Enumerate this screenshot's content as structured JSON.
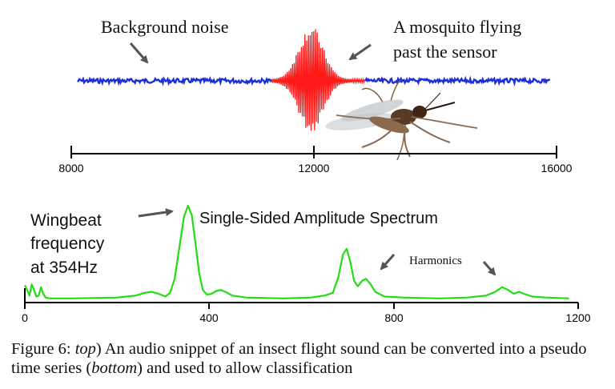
{
  "chart_data": [
    {
      "type": "line",
      "subtitle": "",
      "annotations": {
        "background_noise": "Background noise",
        "mosquito_line1": "A mosquito flying",
        "mosquito_line2": "past the sensor"
      },
      "xlim": [
        8000,
        16000
      ],
      "x_ticks": [
        "8000",
        "12000",
        "16000"
      ],
      "series": [
        {
          "segment": "background-left",
          "color": "#1f2fd6",
          "x_range": [
            8100,
            11300
          ],
          "amplitude": 0.04
        },
        {
          "segment": "mosquito",
          "color": "#ff1a1a",
          "x_range": [
            11300,
            12850
          ],
          "peak_x": 11950,
          "amplitude": 1.0
        },
        {
          "segment": "background-right",
          "color": "#1f2fd6",
          "x_range": [
            12850,
            15900
          ],
          "amplitude": 0.04
        }
      ]
    },
    {
      "type": "line",
      "title": "Single-Sided Amplitude Spectrum",
      "annotations": {
        "wingbeat_line1": "Wingbeat",
        "wingbeat_line2": "frequency",
        "wingbeat_line3": "at 354Hz",
        "harmonics": "Harmonics"
      },
      "xlim": [
        0,
        1200
      ],
      "x_ticks": [
        "0",
        "400",
        "800",
        "1200"
      ],
      "series": [
        {
          "color": "#22dd11",
          "points": [
            [
              0,
              0.15
            ],
            [
              5,
              0.1
            ],
            [
              10,
              0.04
            ],
            [
              15,
              0.16
            ],
            [
              20,
              0.1
            ],
            [
              25,
              0.03
            ],
            [
              30,
              0.04
            ],
            [
              35,
              0.13
            ],
            [
              40,
              0.06
            ],
            [
              45,
              0.02
            ],
            [
              55,
              0.01
            ],
            [
              100,
              0.01
            ],
            [
              200,
              0.02
            ],
            [
              240,
              0.04
            ],
            [
              260,
              0.07
            ],
            [
              275,
              0.08
            ],
            [
              290,
              0.06
            ],
            [
              305,
              0.03
            ],
            [
              315,
              0.07
            ],
            [
              325,
              0.22
            ],
            [
              335,
              0.55
            ],
            [
              345,
              0.88
            ],
            [
              354,
              1.0
            ],
            [
              362,
              0.9
            ],
            [
              370,
              0.6
            ],
            [
              378,
              0.28
            ],
            [
              386,
              0.1
            ],
            [
              395,
              0.05
            ],
            [
              405,
              0.06
            ],
            [
              415,
              0.09
            ],
            [
              425,
              0.1
            ],
            [
              435,
              0.08
            ],
            [
              450,
              0.04
            ],
            [
              480,
              0.02
            ],
            [
              560,
              0.01
            ],
            [
              620,
              0.02
            ],
            [
              650,
              0.04
            ],
            [
              668,
              0.07
            ],
            [
              680,
              0.24
            ],
            [
              690,
              0.48
            ],
            [
              698,
              0.54
            ],
            [
              706,
              0.4
            ],
            [
              714,
              0.2
            ],
            [
              722,
              0.14
            ],
            [
              732,
              0.2
            ],
            [
              740,
              0.22
            ],
            [
              750,
              0.16
            ],
            [
              760,
              0.08
            ],
            [
              780,
              0.03
            ],
            [
              820,
              0.02
            ],
            [
              900,
              0.01
            ],
            [
              960,
              0.02
            ],
            [
              1000,
              0.04
            ],
            [
              1020,
              0.08
            ],
            [
              1035,
              0.13
            ],
            [
              1048,
              0.1
            ],
            [
              1060,
              0.06
            ],
            [
              1072,
              0.08
            ],
            [
              1082,
              0.06
            ],
            [
              1100,
              0.03
            ],
            [
              1130,
              0.02
            ],
            [
              1180,
              0.01
            ]
          ]
        }
      ]
    }
  ],
  "caption": {
    "lead": "Figure 6: ",
    "top_word": "top",
    "middle": ") An audio snippet of an insect flight sound can be converted into a pseudo time series (",
    "bottom_word": "bottom",
    "tail": ") and used to allow classification"
  }
}
